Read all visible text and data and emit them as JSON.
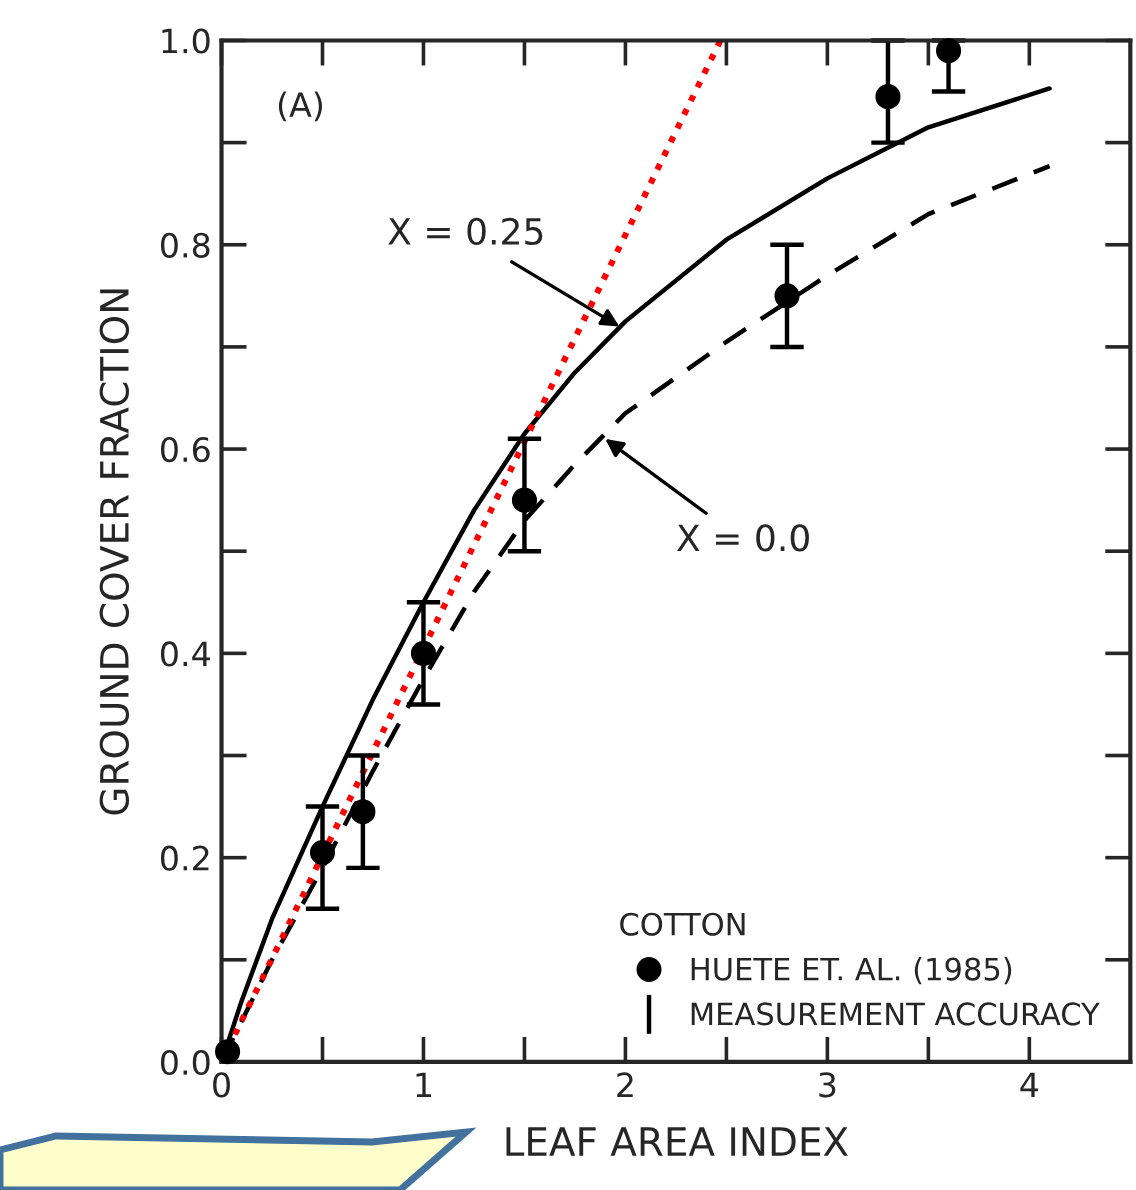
{
  "chart_data": {
    "type": "line",
    "xlabel": "LEAF AREA INDEX",
    "ylabel": "GROUND COVER FRACTION",
    "legend_title": "COTTON",
    "xlim": [
      0,
      4.5
    ],
    "ylim": [
      0,
      1.0
    ],
    "xticks": [
      0,
      {
        "value": 0.5,
        "label": null
      },
      1,
      {
        "value": 1.5,
        "label": null
      },
      2,
      {
        "value": 2.5,
        "label": null
      },
      3,
      {
        "value": 3.5,
        "label": null
      },
      4
    ],
    "yticks": [
      {
        "value": 0,
        "label": "0.0"
      },
      {
        "value": 0.1,
        "label": null
      },
      {
        "value": 0.2,
        "label": "0.2"
      },
      {
        "value": 0.3,
        "label": null
      },
      {
        "value": 0.4,
        "label": "0.4"
      },
      {
        "value": 0.5,
        "label": null
      },
      {
        "value": 0.6,
        "label": "0.6"
      },
      {
        "value": 0.7,
        "label": null
      },
      {
        "value": 0.8,
        "label": "0.8"
      },
      {
        "value": 0.9,
        "label": null
      },
      {
        "value": 1.0,
        "label": "1.0"
      }
    ],
    "grid": false,
    "legend": "bottom right",
    "series": [
      {
        "color": "#000000",
        "line_style": "solid",
        "x": [
          0,
          0.1,
          0.25,
          0.5,
          0.75,
          1,
          1.25,
          1.5,
          1.75,
          2,
          2.5,
          3,
          3.5,
          4.1
        ],
        "values": [
          0,
          0.06,
          0.14,
          0.25,
          0.355,
          0.45,
          0.54,
          0.615,
          0.675,
          0.725,
          0.805,
          0.865,
          0.915,
          0.953
        ]
      },
      {
        "color": "#000000",
        "line_style": "dashed",
        "x": [
          0,
          0.25,
          0.5,
          0.75,
          1,
          1.25,
          1.5,
          1.75,
          2,
          2.5,
          3,
          3.5,
          4.1
        ],
        "values": [
          0,
          0.1,
          0.19,
          0.285,
          0.375,
          0.46,
          0.53,
          0.585,
          0.635,
          0.705,
          0.77,
          0.83,
          0.877
        ]
      },
      {
        "color": "#ff0000",
        "line_style": "dotted",
        "x": [
          0,
          2.47
        ],
        "values": [
          0,
          1.0
        ]
      },
      {
        "type": "scatter",
        "name": "HUETE ET. AL. (1985)",
        "color": "#000000",
        "marker": "circle",
        "x": [
          0.03,
          0.5,
          0.7,
          1.0,
          1.5,
          2.8,
          3.3,
          3.6
        ],
        "values": [
          0.01,
          0.205,
          0.245,
          0.4,
          0.55,
          0.75,
          0.945,
          0.99
        ],
        "errors": [
          null,
          [
            0.15,
            0.25
          ],
          [
            0.19,
            0.3
          ],
          [
            0.35,
            0.45
          ],
          [
            0.5,
            0.61
          ],
          [
            0.7,
            0.8
          ],
          [
            0.9,
            1.0
          ],
          [
            0.95,
            1.0
          ]
        ]
      }
    ],
    "annotations": [
      "(A)",
      {
        "text": "X = 0.25",
        "x": 1.97,
        "y": 0.72
      },
      {
        "text": "X = 0.0",
        "x": 1.9,
        "y": 0.61
      },
      "MEASUREMENT ACCURACY"
    ]
  }
}
